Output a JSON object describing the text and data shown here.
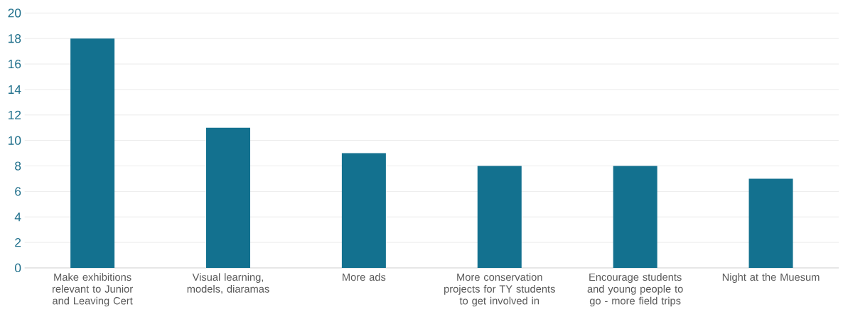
{
  "chart_data": {
    "type": "bar",
    "categories": [
      "Make exhibitions relevant to Junior and Leaving Cert",
      "Visual learning, models, diaramas",
      "More ads",
      "More conservation projects for TY students to get involved in",
      "Encourage students and young people to go - more field trips",
      "Night at the Muesum"
    ],
    "values": [
      18,
      11,
      9,
      8,
      8,
      7
    ],
    "color": "#13718f",
    "ylim": [
      0,
      20
    ],
    "yticks": [
      0,
      2,
      4,
      6,
      8,
      10,
      12,
      14,
      16,
      18,
      20
    ],
    "grid": "y"
  }
}
